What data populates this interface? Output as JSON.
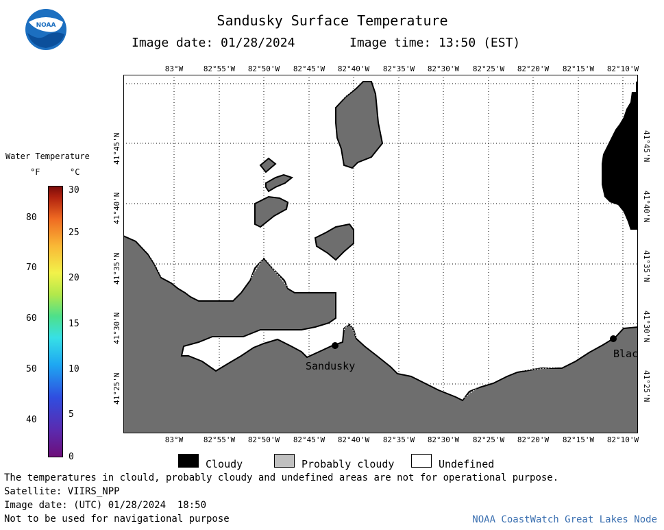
{
  "header": {
    "title": "Sandusky Surface Temperature",
    "image_date": "Image date: 01/28/2024",
    "image_time": "Image time: 13:50 (EST)"
  },
  "logo": {
    "text": "NOAA"
  },
  "map": {
    "lon_labels": [
      "83°W",
      "82°55'W",
      "82°50'W",
      "82°45'W",
      "82°40'W",
      "82°35'W",
      "82°30'W",
      "82°25'W",
      "82°20'W",
      "82°15'W",
      "82°10'W"
    ],
    "lat_labels": [
      "41°45'N",
      "41°40'N",
      "41°35'N",
      "41°30'N",
      "41°25'N"
    ],
    "cities": [
      {
        "name": "Sandusky"
      },
      {
        "name": "Blac"
      }
    ],
    "colors": {
      "land": "#6e6e6e",
      "cloudy": "#000000",
      "undefined": "#ffffff",
      "probably_cloudy": "#c0c0c0"
    }
  },
  "colorbar": {
    "title": "Water Temperature",
    "unit_f": "°F",
    "unit_c": "°C",
    "fahrenheit_ticks": [
      "80",
      "70",
      "60",
      "50",
      "40"
    ],
    "celsius_ticks": [
      "30",
      "25",
      "20",
      "15",
      "10",
      "5",
      "0"
    ]
  },
  "legend": {
    "cloudy": "Cloudy",
    "probably_cloudy": "Probably cloudy",
    "undefined": "Undefined"
  },
  "footer": {
    "disclaimer": "The temperatures in clould, probably cloudy and undefined areas are not for operational purpose.",
    "satellite": "Satellite: VIIRS_NPP",
    "utc_date": "Image date: (UTC) 01/28/2024  18:50",
    "navigation": "Not to be used for navigational purpose",
    "credit": "NOAA CoastWatch Great Lakes Node"
  }
}
